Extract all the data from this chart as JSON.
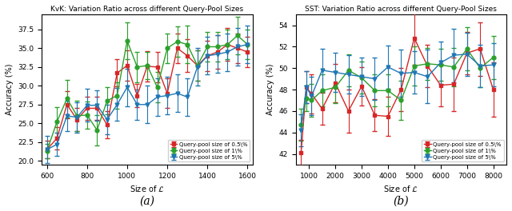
{
  "kvk": {
    "title": "KvK: Variation Ratio across different Query-Pool Sizes",
    "xlabel": "Size of $\\mathcal{L}$",
    "ylabel": "Accuracy (%)",
    "xlim": [
      575,
      1625
    ],
    "ylim": [
      19.5,
      39.5
    ],
    "xticks": [
      600,
      800,
      1000,
      1200,
      1400,
      1600
    ],
    "yticks": [
      20.0,
      22.5,
      25.0,
      27.5,
      30.0,
      32.5,
      35.0,
      37.5
    ],
    "red": {
      "x": [
        600,
        650,
        700,
        750,
        800,
        850,
        900,
        950,
        1000,
        1050,
        1100,
        1150,
        1200,
        1250,
        1300,
        1350,
        1400,
        1450,
        1500,
        1550,
        1600
      ],
      "y": [
        21.5,
        23.0,
        27.5,
        25.5,
        27.0,
        27.0,
        24.8,
        31.7,
        32.7,
        28.7,
        32.6,
        32.5,
        29.0,
        35.0,
        34.0,
        32.7,
        34.0,
        34.5,
        35.5,
        35.0,
        34.5
      ],
      "yerr": [
        1.2,
        1.5,
        1.8,
        1.5,
        1.5,
        1.5,
        1.8,
        1.8,
        2.0,
        1.5,
        2.0,
        2.0,
        2.0,
        2.0,
        2.2,
        2.0,
        2.0,
        2.2,
        2.2,
        2.0,
        2.0
      ]
    },
    "green": {
      "x": [
        600,
        650,
        700,
        750,
        800,
        850,
        900,
        950,
        1000,
        1050,
        1100,
        1150,
        1200,
        1250,
        1300,
        1350,
        1400,
        1450,
        1500,
        1550,
        1600
      ],
      "y": [
        21.3,
        25.2,
        28.3,
        26.0,
        26.1,
        24.1,
        28.0,
        28.7,
        36.0,
        32.5,
        32.7,
        29.8,
        35.0,
        35.9,
        35.5,
        32.7,
        35.2,
        35.2,
        35.5,
        36.7,
        35.5
      ],
      "yerr": [
        1.0,
        2.0,
        2.5,
        2.0,
        1.8,
        2.0,
        1.8,
        1.8,
        2.5,
        2.0,
        1.8,
        2.0,
        2.0,
        2.0,
        2.5,
        2.0,
        2.0,
        2.0,
        2.0,
        2.5,
        2.0
      ]
    },
    "blue": {
      "x": [
        600,
        650,
        700,
        750,
        800,
        850,
        900,
        950,
        1000,
        1050,
        1100,
        1150,
        1200,
        1250,
        1300,
        1350,
        1400,
        1450,
        1500,
        1550,
        1600
      ],
      "y": [
        21.5,
        22.2,
        26.0,
        25.8,
        27.4,
        27.4,
        25.5,
        27.5,
        29.8,
        27.5,
        27.5,
        28.5,
        28.7,
        29.0,
        28.5,
        32.5,
        34.0,
        34.2,
        34.5,
        35.2,
        35.5
      ],
      "yerr": [
        1.8,
        1.5,
        2.0,
        2.0,
        2.2,
        2.0,
        2.0,
        2.2,
        2.5,
        2.0,
        2.5,
        2.5,
        2.5,
        2.5,
        2.5,
        2.5,
        2.5,
        2.5,
        2.5,
        2.5,
        2.5
      ]
    }
  },
  "sst": {
    "title": "SST: Variation Ratio across different Query-Pool Sizes",
    "xlabel": "Size of $\\mathcal{L}$",
    "ylabel": "Accuracy (%)",
    "xlim": [
      500,
      8500
    ],
    "ylim": [
      41.0,
      55.0
    ],
    "xticks": [
      1000,
      2000,
      3000,
      4000,
      5000,
      6000,
      7000,
      8000
    ],
    "yticks": [
      42,
      44,
      46,
      48,
      50,
      52,
      54
    ],
    "red": {
      "x": [
        700,
        900,
        1100,
        1500,
        2000,
        2500,
        3000,
        3500,
        4000,
        4500,
        5000,
        5500,
        6000,
        6500,
        7000,
        7500,
        8000
      ],
      "y": [
        42.1,
        48.2,
        47.6,
        46.2,
        48.6,
        46.0,
        48.3,
        45.6,
        45.5,
        48.0,
        52.8,
        50.2,
        48.4,
        48.5,
        51.4,
        51.8,
        48.0
      ],
      "yerr": [
        1.2,
        1.5,
        1.8,
        1.5,
        1.8,
        2.0,
        1.8,
        1.5,
        1.8,
        2.0,
        2.5,
        2.0,
        2.0,
        2.5,
        2.0,
        2.5,
        2.5
      ]
    },
    "green": {
      "x": [
        700,
        900,
        1100,
        1500,
        2000,
        2500,
        3000,
        3500,
        4000,
        4500,
        5000,
        5500,
        6000,
        6500,
        7000,
        7500,
        8000
      ],
      "y": [
        44.7,
        47.2,
        47.0,
        47.9,
        48.2,
        49.8,
        49.1,
        47.9,
        47.9,
        47.0,
        50.2,
        50.4,
        50.3,
        50.1,
        51.8,
        50.0,
        51.0
      ],
      "yerr": [
        1.5,
        1.2,
        1.5,
        1.5,
        1.5,
        1.5,
        1.5,
        1.5,
        1.5,
        1.8,
        1.8,
        1.5,
        1.5,
        1.8,
        2.0,
        1.8,
        2.0
      ]
    },
    "blue": {
      "x": [
        700,
        900,
        1100,
        1500,
        2000,
        2500,
        3000,
        3500,
        4000,
        4500,
        5000,
        5500,
        6000,
        6500,
        7000,
        7500,
        8000
      ],
      "y": [
        44.2,
        48.2,
        47.4,
        49.8,
        49.6,
        49.4,
        49.2,
        49.0,
        50.1,
        49.5,
        49.6,
        49.2,
        50.5,
        51.2,
        51.3,
        50.2,
        50.3
      ],
      "yerr": [
        1.5,
        1.5,
        1.8,
        2.0,
        1.8,
        1.8,
        1.8,
        2.0,
        2.0,
        2.2,
        2.0,
        2.5,
        2.0,
        2.5,
        2.0,
        2.0,
        2.0
      ]
    }
  },
  "legend_labels": [
    "Query-pool size of 0.5\\%",
    "Query-pool size of 1\\%",
    "Query-pool size of 5\\%"
  ],
  "red_color": "#d62728",
  "green_color": "#2ca02c",
  "blue_color": "#1f77b4",
  "marker_size": 3.5,
  "line_width": 1.0,
  "capsize": 2,
  "elinewidth": 0.8,
  "label_a": "(a)",
  "label_b": "(b)"
}
